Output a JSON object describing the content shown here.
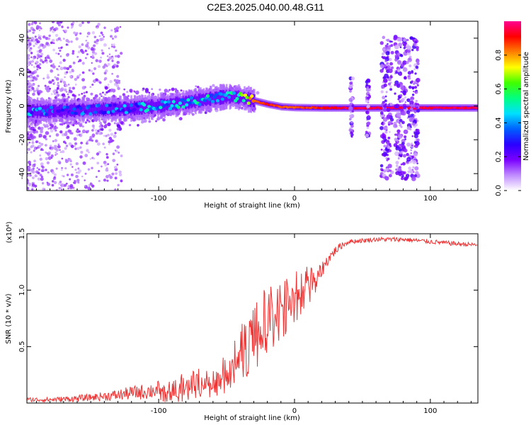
{
  "title": "C2E3.2025.040.00.48.G11",
  "chart_data": [
    {
      "type": "heatmap",
      "xlabel": "Height of straight line (km)",
      "ylabel": "Frequency (Hz)",
      "xlim": [
        -197,
        135
      ],
      "ylim": [
        -50,
        50
      ],
      "x_ticks": [
        -100,
        0,
        100
      ],
      "x_tick_labels": [
        "-100",
        "0",
        "100"
      ],
      "y_ticks": [
        -40,
        -20,
        0,
        20,
        40
      ],
      "y_tick_labels": [
        "-40",
        "-20",
        "0",
        "20",
        "40"
      ],
      "colorbar": {
        "label": "Normalized spectral amplitude",
        "range": [
          0,
          1
        ],
        "ticks": [
          0.0,
          0.2,
          0.4,
          0.6,
          0.8
        ],
        "tick_labels": [
          "0.0",
          "0.2",
          "0.4",
          "0.6",
          "0.8"
        ],
        "colors": [
          "#ffffff",
          "#c08bff",
          "#7a00ff",
          "#2a00ff",
          "#0060ff",
          "#00e0ff",
          "#00ff80",
          "#40ff00",
          "#ffff00",
          "#ff8000",
          "#ff0000",
          "#ff0090"
        ]
      },
      "ridge": {
        "x": [
          -197,
          -180,
          -160,
          -140,
          -120,
          -100,
          -80,
          -60,
          -50,
          -40,
          -30,
          -20,
          -10,
          0,
          20,
          40,
          60,
          80,
          100,
          120,
          135
        ],
        "frequency": [
          -3,
          -3,
          -2.5,
          -2,
          -1.5,
          0,
          2,
          4.5,
          5.5,
          5,
          3,
          1,
          -0.5,
          -1,
          -1.2,
          -1.2,
          -1.2,
          -1.2,
          -1.2,
          -1.2,
          -1.2
        ],
        "amplitude": [
          0.35,
          0.3,
          0.3,
          0.35,
          0.35,
          0.4,
          0.45,
          0.45,
          0.45,
          0.55,
          0.8,
          0.9,
          0.85,
          0.85,
          0.9,
          0.95,
          0.95,
          0.95,
          0.95,
          0.95,
          0.95
        ]
      },
      "bursts_x": [
        42,
        54,
        68,
        78,
        87
      ]
    },
    {
      "type": "line",
      "xlabel": "Height of straight line (km)",
      "ylabel": "SNR (10 * v/v)",
      "y_multiplier": "(x10⁴)",
      "xlim": [
        -197,
        135
      ],
      "ylim": [
        0,
        1.5
      ],
      "x_ticks": [
        -100,
        0,
        100
      ],
      "x_tick_labels": [
        "-100",
        "0",
        "100"
      ],
      "y_ticks": [
        0.5,
        1.0,
        1.5
      ],
      "y_tick_labels": [
        "0.5",
        "1.0",
        "1.5"
      ],
      "color": "#ee3333",
      "series": [
        {
          "x": [
            -197,
            -180,
            -160,
            -150,
            -140,
            -130,
            -120,
            -110,
            -100,
            -90,
            -80,
            -70,
            -60,
            -55,
            -50,
            -45,
            -40,
            -35,
            -30,
            -25,
            -20,
            -15,
            -10,
            -5,
            0,
            5,
            10,
            15,
            20,
            25,
            30,
            35,
            40,
            50,
            60,
            70,
            80,
            90,
            100,
            110,
            120,
            135
          ],
          "values": [
            0.03,
            0.03,
            0.04,
            0.05,
            0.06,
            0.07,
            0.09,
            0.1,
            0.12,
            0.14,
            0.17,
            0.2,
            0.2,
            0.22,
            0.3,
            0.38,
            0.48,
            0.57,
            0.66,
            0.74,
            0.8,
            0.86,
            0.88,
            0.93,
            0.98,
            1.04,
            1.09,
            1.12,
            1.18,
            1.28,
            1.35,
            1.4,
            1.43,
            1.44,
            1.45,
            1.45,
            1.45,
            1.44,
            1.43,
            1.42,
            1.41,
            1.4
          ],
          "noise": [
            0.02,
            0.02,
            0.03,
            0.03,
            0.04,
            0.05,
            0.06,
            0.07,
            0.08,
            0.09,
            0.1,
            0.11,
            0.12,
            0.13,
            0.16,
            0.18,
            0.2,
            0.22,
            0.24,
            0.24,
            0.24,
            0.24,
            0.22,
            0.2,
            0.18,
            0.16,
            0.14,
            0.1,
            0.07,
            0.05,
            0.04,
            0.03,
            0.02,
            0.02,
            0.02,
            0.02,
            0.02,
            0.02,
            0.02,
            0.02,
            0.02,
            0.02
          ]
        }
      ]
    }
  ]
}
